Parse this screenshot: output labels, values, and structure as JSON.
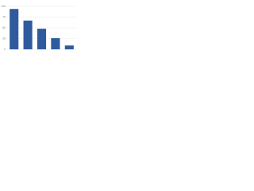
{
  "chart_data": {
    "type": "bar",
    "categories": [
      null,
      null,
      null,
      null,
      null
    ],
    "values": [
      94,
      67,
      48,
      26,
      9
    ],
    "color": "#2f5b9e",
    "ylim": [
      0,
      100
    ],
    "yticks": [
      0,
      25,
      50,
      75,
      100
    ],
    "grid": true
  }
}
